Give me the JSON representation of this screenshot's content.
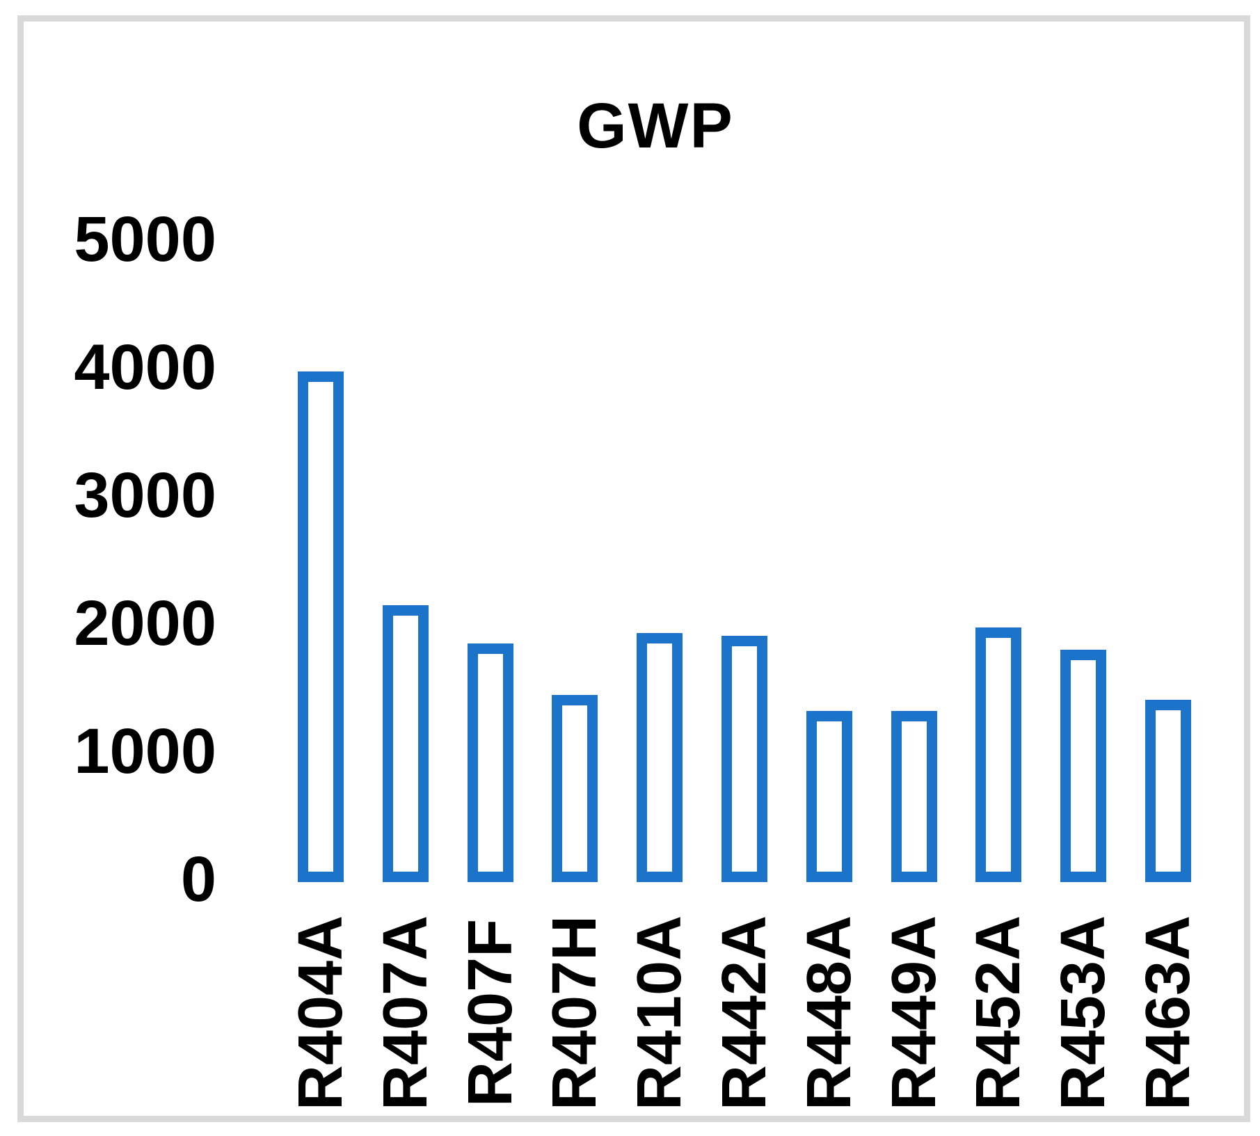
{
  "chart_data": {
    "type": "bar",
    "title": "GWP",
    "categories": [
      "R404A",
      "R407A",
      "R407F",
      "R407H",
      "R410A",
      "R442A",
      "R448A",
      "R449A",
      "R452A",
      "R453A",
      "R463A"
    ],
    "values": [
      3970,
      2140,
      1840,
      1440,
      1925,
      1900,
      1315,
      1315,
      1965,
      1795,
      1400
    ],
    "xlabel": "",
    "ylabel": "",
    "ylim": [
      0,
      5000
    ],
    "yticks": [
      0,
      1000,
      2000,
      3000,
      4000,
      5000
    ],
    "grid": false,
    "legend": "none",
    "bar_fill": "#FFFFFF",
    "bar_stroke": "#1B74C9",
    "axis_text_color": "#000000",
    "frame_color": "#D9D9D9",
    "background": "#FFFFFF"
  }
}
